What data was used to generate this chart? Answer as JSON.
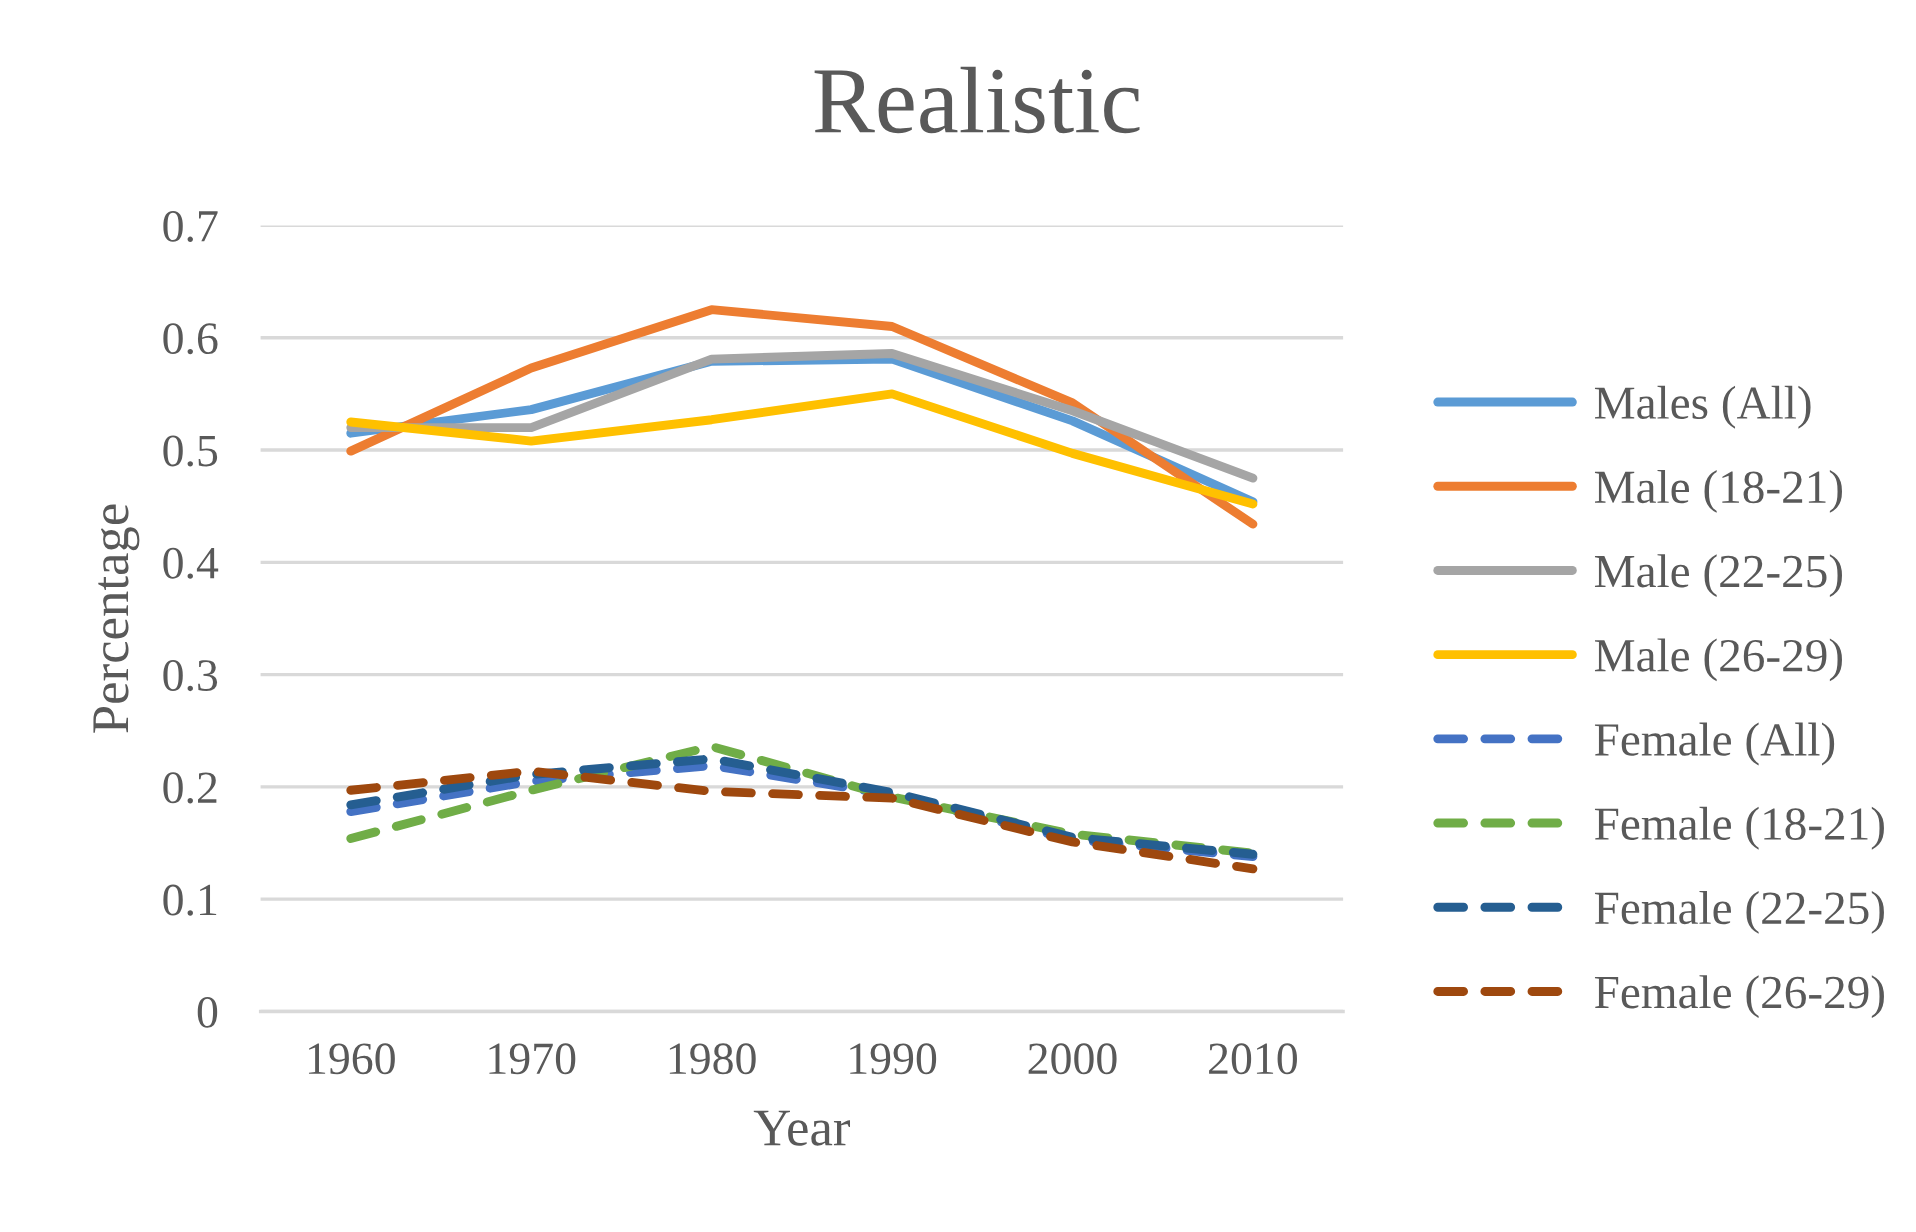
{
  "chart_data": {
    "type": "line",
    "title": "Realistic",
    "xlabel": "Year",
    "ylabel": "Percentage",
    "categories": [
      "1960",
      "1970",
      "1980",
      "1990",
      "2000",
      "2010"
    ],
    "series": [
      {
        "name": "Males (All)",
        "color": "#5b9bd5",
        "line_style": "solid",
        "values": [
          0.515,
          0.536,
          0.579,
          0.581,
          0.526,
          0.454
        ]
      },
      {
        "name": "Male (18-21)",
        "color": "#ed7d31",
        "line_style": "solid",
        "values": [
          0.499,
          0.573,
          0.625,
          0.61,
          0.542,
          0.434
        ]
      },
      {
        "name": "Male (22-25)",
        "color": "#a5a5a5",
        "line_style": "solid",
        "values": [
          0.52,
          0.52,
          0.581,
          0.586,
          0.535,
          0.475
        ]
      },
      {
        "name": "Male (26-29)",
        "color": "#ffc000",
        "line_style": "solid",
        "values": [
          0.525,
          0.508,
          0.527,
          0.55,
          0.497,
          0.452
        ]
      },
      {
        "name": "Female (All)",
        "color": "#4472c4",
        "line_style": "dashed",
        "values": [
          0.178,
          0.205,
          0.219,
          0.193,
          0.153,
          0.138
        ]
      },
      {
        "name": "Female (18-21)",
        "color": "#70ad47",
        "line_style": "dashed",
        "values": [
          0.154,
          0.197,
          0.236,
          0.191,
          0.158,
          0.141
        ]
      },
      {
        "name": "Female (22-25)",
        "color": "#255e91",
        "line_style": "dashed",
        "values": [
          0.184,
          0.211,
          0.225,
          0.195,
          0.155,
          0.14
        ]
      },
      {
        "name": "Female (26-29)",
        "color": "#9e480e",
        "line_style": "dashed",
        "values": [
          0.197,
          0.214,
          0.196,
          0.19,
          0.151,
          0.127
        ]
      }
    ],
    "ylim": [
      0,
      0.7
    ],
    "yticks": [
      {
        "value": 0,
        "label": "0"
      },
      0.1,
      0.2,
      0.3,
      0.4,
      0.5,
      0.6,
      0.7
    ],
    "grid": "y",
    "legend": "right",
    "marker": "none"
  }
}
